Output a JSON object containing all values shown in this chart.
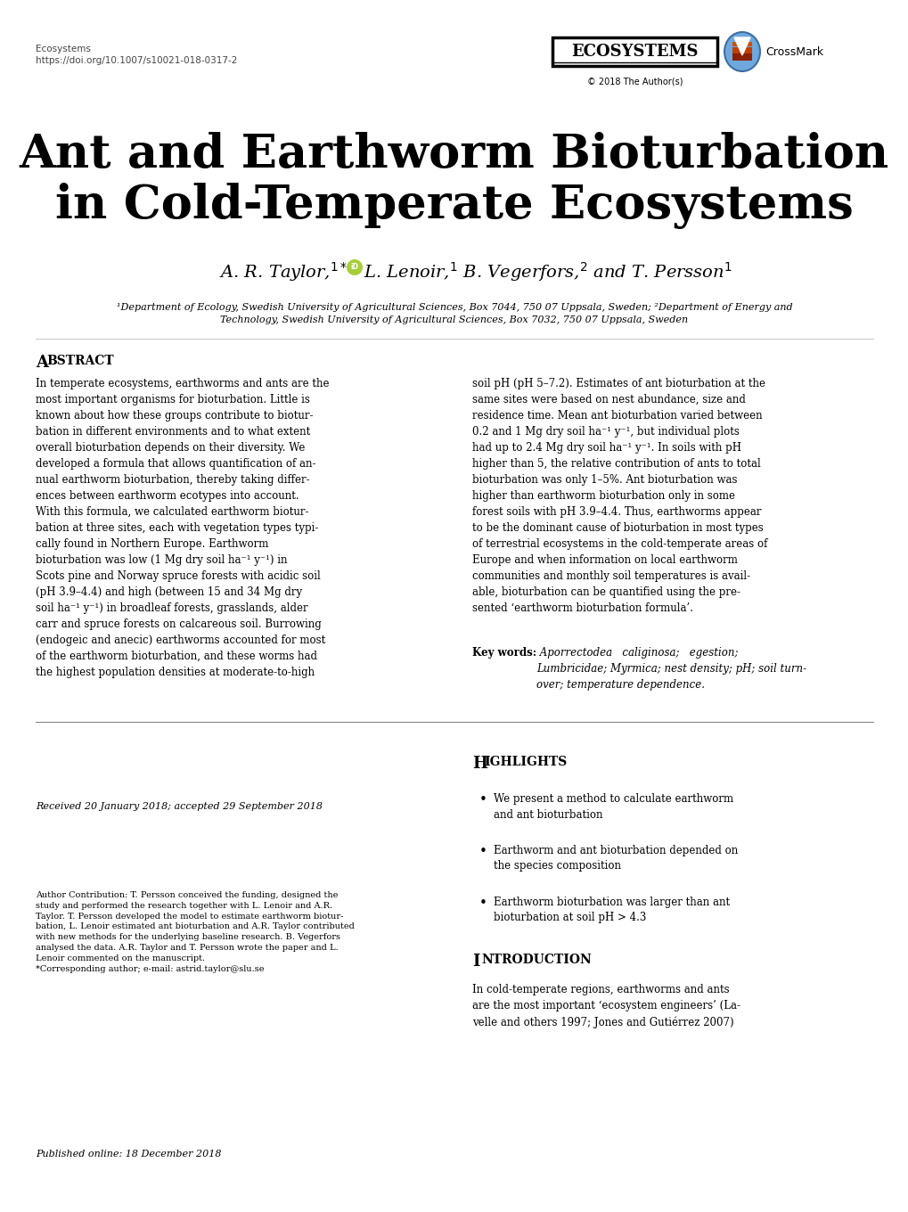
{
  "background_color": "#ffffff",
  "journal_name": "Ecosystems",
  "doi": "https://doi.org/10.1007/s10021-018-0317-2",
  "title_line1": "Ant and Earthworm Bioturbation",
  "title_line2": "in Cold-Temperate Ecosystems",
  "author_line": "A. R. Taylor,",
  "affil1": "¹Department of Ecology, Swedish University of Agricultural Sciences, Box 7044, 750 07 Uppsala, Sweden; ²Department of Energy and",
  "affil2": "Technology, Swedish University of Agricultural Sciences, Box 7032, 750 07 Uppsala, Sweden",
  "abstract_col1": "In temperate ecosystems, earthworms and ants are the\nmost important organisms for bioturbation. Little is\nknown about how these groups contribute to biotur-\nbation in different environments and to what extent\noverall bioturbation depends on their diversity. We\ndeveloped a formula that allows quantification of an-\nnual earthworm bioturbation, thereby taking differ-\nences between earthworm ecotypes into account.\nWith this formula, we calculated earthworm biotur-\nbation at three sites, each with vegetation types typi-\ncally found in Northern Europe. Earthworm\nbioturbation was low (1 Mg dry soil ha⁻¹ y⁻¹) in\nScots pine and Norway spruce forests with acidic soil\n(pH 3.9–4.4) and high (between 15 and 34 Mg dry\nsoil ha⁻¹ y⁻¹) in broadleaf forests, grasslands, alder\ncarr and spruce forests on calcareous soil. Burrowing\n(endogeic and anecic) earthworms accounted for most\nof the earthworm bioturbation, and these worms had\nthe highest population densities at moderate-to-high",
  "abstract_col2": "soil pH (pH 5–7.2). Estimates of ant bioturbation at the\nsame sites were based on nest abundance, size and\nresidence time. Mean ant bioturbation varied between\n0.2 and 1 Mg dry soil ha⁻¹ y⁻¹, but individual plots\nhad up to 2.4 Mg dry soil ha⁻¹ y⁻¹. In soils with pH\nhigher than 5, the relative contribution of ants to total\nbioturbation was only 1–5%. Ant bioturbation was\nhigher than earthworm bioturbation only in some\nforest soils with pH 3.9–4.4. Thus, earthworms appear\nto be the dominant cause of bioturbation in most types\nof terrestrial ecosystems in the cold-temperate areas of\nEurope and when information on local earthworm\ncommunities and monthly soil temperatures is avail-\nable, bioturbation can be quantified using the pre-\nsented ‘earthworm bioturbation formula’.",
  "keywords_text": "Aporrectodea   caliginosa;   egestion;\nLumbricidae; Myrmica; nest density; pH; soil turn-\nover; temperature dependence.",
  "highlight1": "We present a method to calculate earthworm\nand ant bioturbation",
  "highlight2": "Earthworm and ant bioturbation depended on\nthe species composition",
  "highlight3": "Earthworm bioturbation was larger than ant\nbioturbation at soil pH > 4.3",
  "intro_text": "In cold-temperate regions, earthworms and ants\nare the most important ‘ecosystem engineers’ (La-\nvelle and others 1997; Jones and Gutiérrez 2007)",
  "received_text": "Received 20 January 2018; accepted 29 September 2018",
  "author_contribution_text": "Author Contribution: T. Persson conceived the funding, designed the\nstudy and performed the research together with L. Lenoir and A.R.\nTaylor. T. Persson developed the model to estimate earthworm biotur-\nbation, L. Lenoir estimated ant bioturbation and A.R. Taylor contributed\nwith new methods for the underlying baseline research. B. Vegerfors\nanalysed the data. A.R. Taylor and T. Persson wrote the paper and L.\nLenoir commented on the manuscript.\n*Corresponding author; e-mail: astrid.taylor@slu.se",
  "published_text": "Published online: 18 December 2018"
}
